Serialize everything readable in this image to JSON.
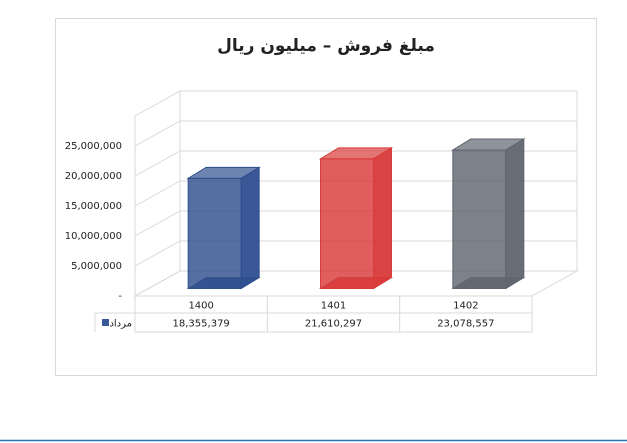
{
  "chart_data": {
    "type": "bar3d",
    "title": "مبلغ فروش – میلیون ریال",
    "categories": [
      "1400",
      "1401",
      "1402"
    ],
    "series": [
      {
        "name": "مرداد",
        "color": "#3a5a9a",
        "point_colors": [
          "#2f4f8f",
          "#d93a3a",
          "#5f6670"
        ],
        "values": [
          18355379,
          21610297,
          23078557
        ],
        "value_labels": [
          "18,355,379",
          "21,610,297",
          "23,078,557"
        ]
      }
    ],
    "ylim": [
      0,
      25000000
    ],
    "yticks": [
      {
        "value": 0,
        "label": "-"
      },
      {
        "value": 5000000,
        "label": "5,000,000"
      },
      {
        "value": 10000000,
        "label": "10,000,000"
      },
      {
        "value": 15000000,
        "label": "15,000,000"
      },
      {
        "value": 20000000,
        "label": "20,000,000"
      },
      {
        "value": 25000000,
        "label": "25,000,000"
      }
    ],
    "grid": true,
    "data_table": true
  }
}
